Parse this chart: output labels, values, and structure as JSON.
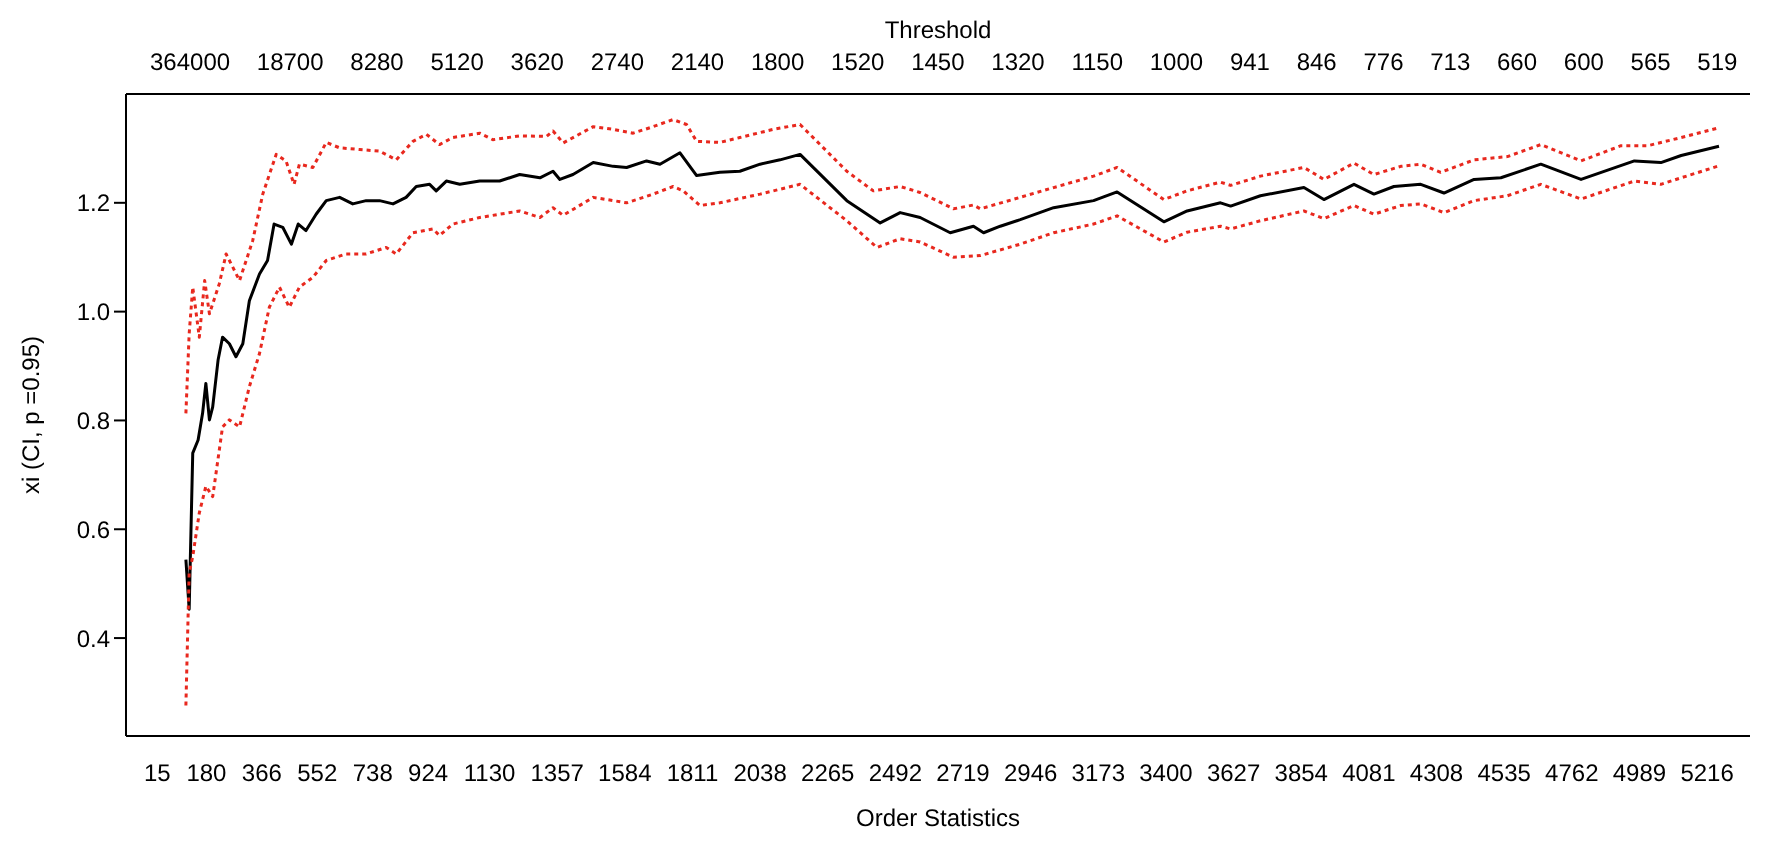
{
  "chart_data": {
    "type": "line",
    "xlabel": "Order Statistics",
    "ylabel": "xi (CI, p =0.95)",
    "annotations": [
      "Threshold",
      "364000",
      "18700",
      "8280",
      "5120",
      "3620",
      "2740",
      "2140",
      "1800",
      "1520",
      "1450",
      "1320",
      "1150",
      "1000",
      "941",
      "846",
      "776",
      "713",
      "660",
      "600",
      "565",
      "519"
    ],
    "xlim": [
      -90,
      5360
    ],
    "ylim": [
      0.22,
      1.4
    ],
    "xticks": [
      15,
      180,
      366,
      552,
      738,
      924,
      1130,
      1357,
      1584,
      1811,
      2038,
      2265,
      2492,
      2719,
      2946,
      3173,
      3400,
      3627,
      3854,
      4081,
      4308,
      4535,
      4762,
      4989,
      5216
    ],
    "yticks": [
      0.4,
      0.6,
      0.8,
      {
        "value": 1,
        "label": "1.0"
      },
      1.2
    ],
    "grid": false,
    "legend": false,
    "series": [
      {
        "color": "#000000",
        "line_style": "solid",
        "x": [
          111,
          122,
          134,
          152,
          167,
          178,
          190,
          201,
          219,
          234,
          257,
          279,
          302,
          324,
          358,
          385,
          407,
          436,
          465,
          488,
          514,
          548,
          582,
          627,
          671,
          716,
          761,
          806,
          850,
          884,
          929,
          951,
          985,
          1030,
          1097,
          1164,
          1231,
          1299,
          1343,
          1366,
          1410,
          1478,
          1545,
          1590,
          1657,
          1702,
          1769,
          1825,
          1903,
          1970,
          2038,
          2105,
          2172,
          2329,
          2441,
          2508,
          2575,
          2676,
          2754,
          2788,
          2844,
          2911,
          3023,
          3157,
          3236,
          3393,
          3471,
          3583,
          3617,
          3717,
          3863,
          3930,
          4031,
          4098,
          4165,
          4255,
          4333,
          4434,
          4524,
          4658,
          4793,
          4972,
          5061,
          5129,
          5256
        ],
        "values": [
          0.544,
          0.453,
          0.74,
          0.764,
          0.813,
          0.868,
          0.801,
          0.825,
          0.911,
          0.953,
          0.941,
          0.917,
          0.941,
          1.02,
          1.069,
          1.094,
          1.161,
          1.155,
          1.124,
          1.161,
          1.149,
          1.179,
          1.204,
          1.21,
          1.198,
          1.204,
          1.204,
          1.198,
          1.21,
          1.23,
          1.234,
          1.222,
          1.24,
          1.234,
          1.24,
          1.24,
          1.252,
          1.246,
          1.258,
          1.243,
          1.252,
          1.274,
          1.267,
          1.265,
          1.277,
          1.271,
          1.292,
          1.25,
          1.256,
          1.258,
          1.271,
          1.279,
          1.289,
          1.204,
          1.163,
          1.182,
          1.173,
          1.145,
          1.157,
          1.145,
          1.157,
          1.169,
          1.191,
          1.204,
          1.22,
          1.165,
          1.185,
          1.2,
          1.194,
          1.213,
          1.228,
          1.206,
          1.234,
          1.216,
          1.23,
          1.234,
          1.218,
          1.243,
          1.246,
          1.271,
          1.243,
          1.277,
          1.274,
          1.287,
          1.304
        ]
      },
      {
        "color": "#e8281e",
        "line_style": "dotted",
        "x": [
          111,
          122,
          134,
          156,
          174,
          190,
          223,
          246,
          291,
          335,
          369,
          414,
          447,
          474,
          492,
          537,
          582,
          627,
          694,
          761,
          817,
          873,
          918,
          962,
          1007,
          1097,
          1141,
          1231,
          1321,
          1343,
          1377,
          1478,
          1545,
          1612,
          1679,
          1746,
          1791,
          1825,
          1903,
          1970,
          2082,
          2172,
          2329,
          2418,
          2508,
          2575,
          2687,
          2754,
          2777,
          2911,
          3023,
          3157,
          3236,
          3393,
          3471,
          3583,
          3617,
          3717,
          3863,
          3930,
          4031,
          4098,
          4188,
          4255,
          4322,
          4434,
          4546,
          4658,
          4793,
          4927,
          5017,
          5129,
          5256
        ],
        "values": [
          0.813,
          0.959,
          1.045,
          0.953,
          1.057,
          0.996,
          1.051,
          1.106,
          1.057,
          1.13,
          1.216,
          1.289,
          1.277,
          1.234,
          1.271,
          1.265,
          1.311,
          1.301,
          1.298,
          1.295,
          1.279,
          1.313,
          1.326,
          1.307,
          1.32,
          1.328,
          1.316,
          1.323,
          1.322,
          1.332,
          1.31,
          1.34,
          1.335,
          1.328,
          1.34,
          1.353,
          1.344,
          1.313,
          1.311,
          1.32,
          1.335,
          1.344,
          1.258,
          1.222,
          1.23,
          1.219,
          1.189,
          1.196,
          1.189,
          1.21,
          1.228,
          1.249,
          1.265,
          1.206,
          1.222,
          1.238,
          1.232,
          1.249,
          1.265,
          1.243,
          1.273,
          1.252,
          1.267,
          1.271,
          1.256,
          1.279,
          1.285,
          1.307,
          1.277,
          1.305,
          1.305,
          1.32,
          1.338
        ]
      },
      {
        "color": "#e8281e",
        "line_style": "dotted",
        "x": [
          111,
          122,
          134,
          156,
          178,
          201,
          234,
          257,
          291,
          324,
          358,
          391,
          425,
          458,
          492,
          537,
          582,
          649,
          716,
          783,
          817,
          873,
          940,
          962,
          1007,
          1097,
          1231,
          1299,
          1343,
          1377,
          1478,
          1590,
          1679,
          1746,
          1780,
          1836,
          1903,
          2038,
          2172,
          2329,
          2430,
          2508,
          2575,
          2687,
          2777,
          2911,
          3023,
          3157,
          3236,
          3393,
          3471,
          3583,
          3617,
          3717,
          3863,
          3930,
          4031,
          4098,
          4188,
          4255,
          4333,
          4434,
          4546,
          4658,
          4793,
          4972,
          5061,
          5129,
          5256
        ],
        "values": [
          0.276,
          0.52,
          0.55,
          0.63,
          0.679,
          0.66,
          0.788,
          0.801,
          0.788,
          0.862,
          0.923,
          1.008,
          1.045,
          1.008,
          1.045,
          1.063,
          1.094,
          1.106,
          1.106,
          1.118,
          1.106,
          1.145,
          1.152,
          1.14,
          1.161,
          1.173,
          1.185,
          1.173,
          1.191,
          1.177,
          1.21,
          1.2,
          1.216,
          1.23,
          1.222,
          1.195,
          1.2,
          1.216,
          1.234,
          1.167,
          1.118,
          1.134,
          1.128,
          1.1,
          1.103,
          1.124,
          1.145,
          1.161,
          1.176,
          1.128,
          1.146,
          1.157,
          1.152,
          1.167,
          1.185,
          1.171,
          1.195,
          1.179,
          1.195,
          1.198,
          1.182,
          1.204,
          1.213,
          1.234,
          1.207,
          1.24,
          1.234,
          1.246,
          1.268
        ]
      }
    ]
  }
}
